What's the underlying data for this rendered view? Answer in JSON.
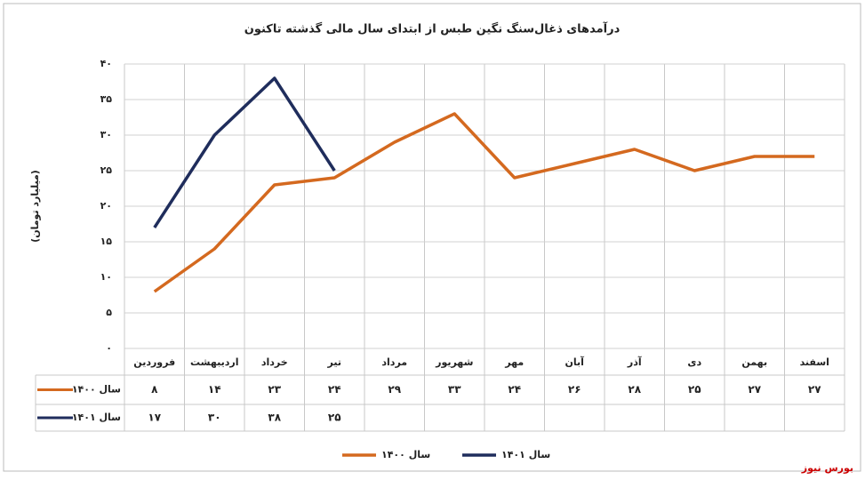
{
  "chart_data": {
    "type": "line",
    "title": "درآمدهای ذغال‌سنگ نگین طبس از ابتدای سال مالی گذشته تاکنون",
    "y_label": "(میلیارد تومان)",
    "source": "بورس نیوز",
    "categories": [
      "فروردین",
      "اردیبهشت",
      "خرداد",
      "تیر",
      "مرداد",
      "شهریور",
      "مهر",
      "آبان",
      "آذر",
      "دی",
      "بهمن",
      "اسفند"
    ],
    "series": [
      {
        "name": "سال ۱۴۰۰",
        "color": "#d4691f",
        "values": [
          8,
          14,
          23,
          24,
          29,
          33,
          24,
          26,
          28,
          25,
          27,
          27
        ],
        "value_labels": [
          "۸",
          "۱۴",
          "۲۳",
          "۲۴",
          "۲۹",
          "۳۳",
          "۲۴",
          "۲۶",
          "۲۸",
          "۲۵",
          "۲۷",
          "۲۷"
        ]
      },
      {
        "name": "سال ۱۴۰۱",
        "color": "#1f2d5c",
        "values": [
          17,
          30,
          38,
          25,
          null,
          null,
          null,
          null,
          null,
          null,
          null,
          null
        ],
        "value_labels": [
          "۱۷",
          "۳۰",
          "۳۸",
          "۲۵",
          null,
          null,
          null,
          null,
          null,
          null,
          null,
          null
        ]
      }
    ],
    "ylim": [
      0,
      40
    ],
    "yticks": [
      {
        "value": 0,
        "label": "۰"
      },
      {
        "value": 5,
        "label": "۵"
      },
      {
        "value": 10,
        "label": "۱۰"
      },
      {
        "value": 15,
        "label": "۱۵"
      },
      {
        "value": 20,
        "label": "۲۰"
      },
      {
        "value": 25,
        "label": "۲۵"
      },
      {
        "value": 30,
        "label": "۳۰"
      },
      {
        "value": 35,
        "label": "۳۵"
      },
      {
        "value": 40,
        "label": "۴۰"
      }
    ],
    "grid": true
  }
}
